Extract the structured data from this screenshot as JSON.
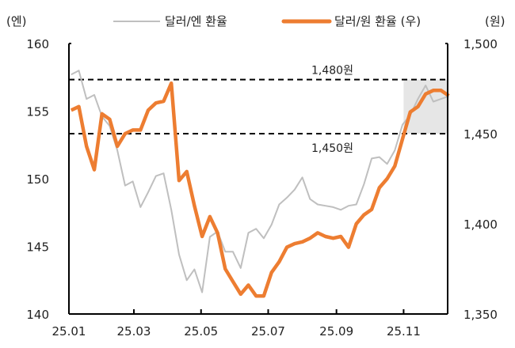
{
  "chart_data": {
    "type": "line",
    "left_unit_label": "(엔)",
    "right_unit_label": "(원)",
    "legend_position": "top",
    "grid": false,
    "x_range": [
      "2025-01-01",
      "2025-12-11"
    ],
    "x_ticks": [
      {
        "date": "2025-01-01",
        "label": "25.01"
      },
      {
        "date": "2025-03-01",
        "label": "25.03"
      },
      {
        "date": "2025-05-01",
        "label": "25.05"
      },
      {
        "date": "2025-07-01",
        "label": "25.07"
      },
      {
        "date": "2025-09-01",
        "label": "25.09"
      },
      {
        "date": "2025-11-01",
        "label": "25.11"
      }
    ],
    "y_left": {
      "range": [
        140,
        160
      ],
      "ticks": [
        "140",
        "145",
        "150",
        "155",
        "160"
      ]
    },
    "y_right": {
      "range": [
        1350,
        1500
      ],
      "ticks": [
        "1,350",
        "1,400",
        "1,450",
        "1,500"
      ]
    },
    "dates": [
      "2025-01-03",
      "2025-01-10",
      "2025-01-17",
      "2025-01-24",
      "2025-01-31",
      "2025-02-07",
      "2025-02-14",
      "2025-02-21",
      "2025-02-28",
      "2025-03-07",
      "2025-03-14",
      "2025-03-21",
      "2025-03-28",
      "2025-04-04",
      "2025-04-11",
      "2025-04-18",
      "2025-04-25",
      "2025-05-02",
      "2025-05-09",
      "2025-05-16",
      "2025-05-23",
      "2025-05-30",
      "2025-06-06",
      "2025-06-13",
      "2025-06-20",
      "2025-06-27",
      "2025-07-04",
      "2025-07-11",
      "2025-07-18",
      "2025-07-25",
      "2025-08-01",
      "2025-08-08",
      "2025-08-15",
      "2025-08-22",
      "2025-08-29",
      "2025-09-05",
      "2025-09-12",
      "2025-09-19",
      "2025-09-26",
      "2025-10-03",
      "2025-10-10",
      "2025-10-17",
      "2025-10-24",
      "2025-10-31",
      "2025-11-07",
      "2025-11-14",
      "2025-11-21",
      "2025-11-28",
      "2025-12-05",
      "2025-12-12"
    ],
    "series": [
      {
        "name": "달러/엔 환율",
        "axis": "left",
        "color": "#bfbfbf",
        "values": [
          157.7,
          158.0,
          155.9,
          156.2,
          154.6,
          153.9,
          152.1,
          149.5,
          149.8,
          147.9,
          149.0,
          150.2,
          150.4,
          147.7,
          144.4,
          142.5,
          143.3,
          141.6,
          145.7,
          146.1,
          144.6,
          144.6,
          143.4,
          146.0,
          146.3,
          145.6,
          146.6,
          148.1,
          148.6,
          149.2,
          150.1,
          148.5,
          148.1,
          148.0,
          147.9,
          147.7,
          148.0,
          148.1,
          149.6,
          151.5,
          151.6,
          151.1,
          152.1,
          154.0,
          154.7,
          155.9,
          156.9,
          155.7,
          155.9,
          156.1
        ]
      },
      {
        "name": "달러/원 환율 (우)",
        "axis": "right",
        "color": "#ed7d31",
        "values": [
          1463,
          1465,
          1443,
          1430,
          1461,
          1458,
          1443,
          1450,
          1452,
          1452,
          1463,
          1467,
          1468,
          1478,
          1424,
          1429,
          1410,
          1393,
          1404,
          1395,
          1375,
          1368,
          1361,
          1366,
          1360,
          1360,
          1373,
          1379,
          1387,
          1389,
          1390,
          1392,
          1395,
          1393,
          1392,
          1393,
          1387,
          1400,
          1405,
          1408,
          1420,
          1425,
          1432,
          1447,
          1462,
          1465,
          1472,
          1474,
          1474,
          1471
        ]
      }
    ],
    "reference_lines": [
      {
        "axis": "right",
        "value": 1480,
        "label": "1,480원"
      },
      {
        "axis": "right",
        "value": 1450,
        "label": "1,450원"
      }
    ],
    "highlight_region": {
      "from": "2025-11-01",
      "to": "2025-12-11",
      "y_from": 1450,
      "y_to": 1480,
      "color": "#e6e6e6"
    }
  }
}
